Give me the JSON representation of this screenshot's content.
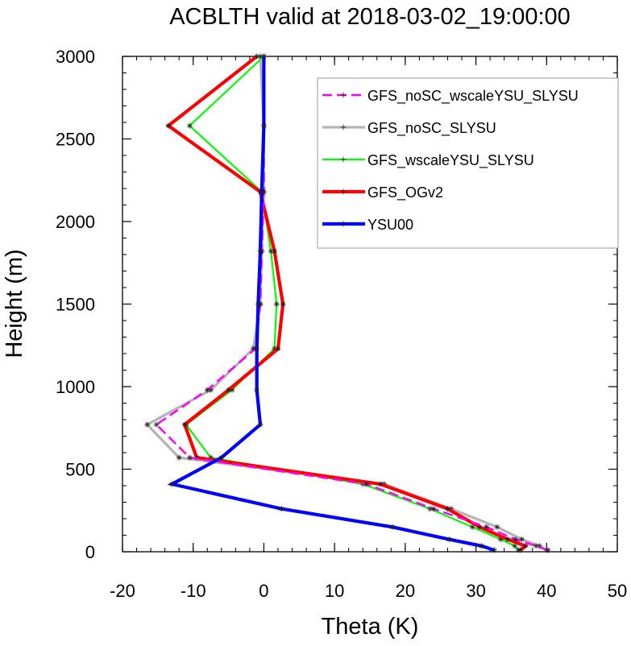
{
  "chart_data": {
    "type": "line",
    "title": "ACBLTH valid at 2018-03-02_19:00:00",
    "xlabel": "Theta (K)",
    "ylabel": "Height (m)",
    "xlim": [
      -20,
      50
    ],
    "ylim": [
      0,
      3000
    ],
    "x_ticks": [
      -20,
      -10,
      0,
      10,
      20,
      30,
      40,
      50
    ],
    "x_tick_labels": [
      "-20",
      "-10",
      "0",
      "10",
      "20",
      "30",
      "40",
      "50"
    ],
    "y_ticks": [
      0,
      500,
      1000,
      1500,
      2000,
      2500,
      3000
    ],
    "y_tick_labels": [
      "0",
      "500",
      "1000",
      "1500",
      "2000",
      "2500",
      "3000"
    ],
    "grid": false,
    "legend_position": "top-right",
    "series": [
      {
        "name": "GFS_noSC_wscaleYSU_SLYSU",
        "color": "#ff00ff",
        "dash": true,
        "values": [
          [
            40.2,
            10
          ],
          [
            38.5,
            35
          ],
          [
            35.6,
            75
          ],
          [
            31.5,
            150
          ],
          [
            24.0,
            260
          ],
          [
            14.5,
            410
          ],
          [
            -10.5,
            570
          ],
          [
            -15.2,
            770
          ],
          [
            -8.0,
            980
          ],
          [
            -1.2,
            1230
          ],
          [
            -0.5,
            1500
          ],
          [
            -0.3,
            1820
          ],
          [
            0,
            2180
          ],
          [
            0,
            2580
          ],
          [
            0,
            3000
          ]
        ]
      },
      {
        "name": "GFS_noSC_SLYSU",
        "color": "#b4b4b4",
        "dash": false,
        "values": [
          [
            40.0,
            10
          ],
          [
            39.0,
            35
          ],
          [
            36.5,
            75
          ],
          [
            33.0,
            150
          ],
          [
            26.5,
            260
          ],
          [
            17.0,
            410
          ],
          [
            -12.0,
            570
          ],
          [
            -16.5,
            770
          ],
          [
            -7.5,
            980
          ],
          [
            -1.5,
            1230
          ],
          [
            -0.5,
            1500
          ],
          [
            -0.3,
            1820
          ],
          [
            0,
            2180
          ],
          [
            0,
            2580
          ],
          [
            -0.5,
            3000
          ]
        ]
      },
      {
        "name": "GFS_wscaleYSU_SLYSU",
        "color": "#00ff00",
        "dash": false,
        "values": [
          [
            36.0,
            10
          ],
          [
            35.5,
            35
          ],
          [
            33.5,
            75
          ],
          [
            29.5,
            150
          ],
          [
            23.5,
            260
          ],
          [
            14.0,
            410
          ],
          [
            -7.5,
            570
          ],
          [
            -11.0,
            770
          ],
          [
            -4.5,
            980
          ],
          [
            1.5,
            1230
          ],
          [
            1.8,
            1500
          ],
          [
            1.0,
            1820
          ],
          [
            -0.3,
            2180
          ],
          [
            -10.5,
            2580
          ],
          [
            0,
            3000
          ]
        ]
      },
      {
        "name": "GFS_OGv2",
        "color": "#ff0000",
        "dash": false,
        "values": [
          [
            36.3,
            10
          ],
          [
            37.0,
            35
          ],
          [
            34.5,
            75
          ],
          [
            30.5,
            150
          ],
          [
            26.0,
            260
          ],
          [
            16.5,
            410
          ],
          [
            -9.5,
            570
          ],
          [
            -11.2,
            770
          ],
          [
            -5.0,
            980
          ],
          [
            2.0,
            1230
          ],
          [
            2.7,
            1500
          ],
          [
            1.5,
            1820
          ],
          [
            -0.5,
            2180
          ],
          [
            -13.5,
            2580
          ],
          [
            -1.0,
            3000
          ]
        ]
      },
      {
        "name": "YSU00",
        "color": "#0000ff",
        "dash": false,
        "values": [
          [
            32.6,
            10
          ],
          [
            30.8,
            35
          ],
          [
            26.2,
            75
          ],
          [
            18.2,
            150
          ],
          [
            2.5,
            260
          ],
          [
            -13.0,
            410
          ],
          [
            -6.0,
            570
          ],
          [
            -0.5,
            770
          ],
          [
            -1.0,
            980
          ],
          [
            -1.0,
            1230
          ],
          [
            -0.8,
            1500
          ],
          [
            -0.5,
            1820
          ],
          [
            -0.3,
            2180
          ],
          [
            0,
            2580
          ],
          [
            0,
            3000
          ]
        ]
      }
    ]
  }
}
